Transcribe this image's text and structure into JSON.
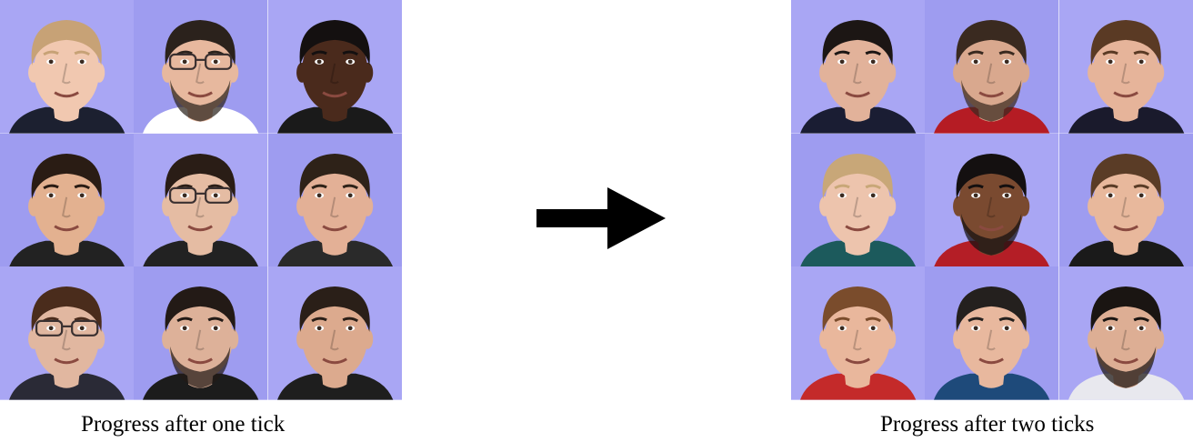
{
  "captions": {
    "left": "Progress after one tick",
    "right": "Progress after two ticks"
  },
  "colors": {
    "background": "#ffffff",
    "arrow": "#000000",
    "tile_bg_a": "#a9a6f4",
    "tile_bg_b": "#9e9cf0"
  },
  "grids": {
    "left": [
      {
        "skin": "#f1c8b0",
        "hair": "#c7a276",
        "glasses": false,
        "beard": false,
        "shirt": "#1c2030"
      },
      {
        "skin": "#e7b89e",
        "hair": "#2b221c",
        "glasses": true,
        "beard": true,
        "shirt": "#ffffff"
      },
      {
        "skin": "#4a2a1c",
        "hair": "#141010",
        "glasses": false,
        "beard": false,
        "shirt": "#1a1a1a"
      },
      {
        "skin": "#e3b190",
        "hair": "#2a1c14",
        "glasses": false,
        "beard": false,
        "shirt": "#222222"
      },
      {
        "skin": "#e5bca3",
        "hair": "#2a1d16",
        "glasses": true,
        "beard": false,
        "shirt": "#222222"
      },
      {
        "skin": "#e3b096",
        "hair": "#2e2218",
        "glasses": false,
        "beard": false,
        "shirt": "#2a2a2a"
      },
      {
        "skin": "#e1b7a0",
        "hair": "#4a2c1c",
        "glasses": true,
        "beard": false,
        "shirt": "#2a2a36"
      },
      {
        "skin": "#ddb199",
        "hair": "#231a16",
        "glasses": false,
        "beard": true,
        "shirt": "#1c1c1c"
      },
      {
        "skin": "#dcaa8e",
        "hair": "#2a1f18",
        "glasses": false,
        "beard": false,
        "shirt": "#1e1e1e"
      }
    ],
    "right": [
      {
        "skin": "#e2b29a",
        "hair": "#1c1614",
        "glasses": false,
        "beard": false,
        "shirt": "#1a1d33"
      },
      {
        "skin": "#d9a88e",
        "hair": "#3a2a20",
        "glasses": false,
        "beard": true,
        "shirt": "#b51c24"
      },
      {
        "skin": "#e6b49a",
        "hair": "#5a3a24",
        "glasses": false,
        "beard": false,
        "shirt": "#1a1a2c"
      },
      {
        "skin": "#edc4ad",
        "hair": "#c8a778",
        "glasses": false,
        "beard": false,
        "shirt": "#1c5a5c"
      },
      {
        "skin": "#7a4a30",
        "hair": "#141010",
        "glasses": false,
        "beard": true,
        "shirt": "#b41e26"
      },
      {
        "skin": "#e8b89c",
        "hair": "#5a3c26",
        "glasses": false,
        "beard": false,
        "shirt": "#1a1a1a"
      },
      {
        "skin": "#e9b79c",
        "hair": "#7a4c2c",
        "glasses": false,
        "beard": false,
        "shirt": "#c42a2a"
      },
      {
        "skin": "#e8b89e",
        "hair": "#24201e",
        "glasses": false,
        "beard": false,
        "shirt": "#1e4a7a"
      },
      {
        "skin": "#ddae94",
        "hair": "#1a1512",
        "glasses": false,
        "beard": true,
        "shirt": "#e8e8ee"
      }
    ]
  }
}
